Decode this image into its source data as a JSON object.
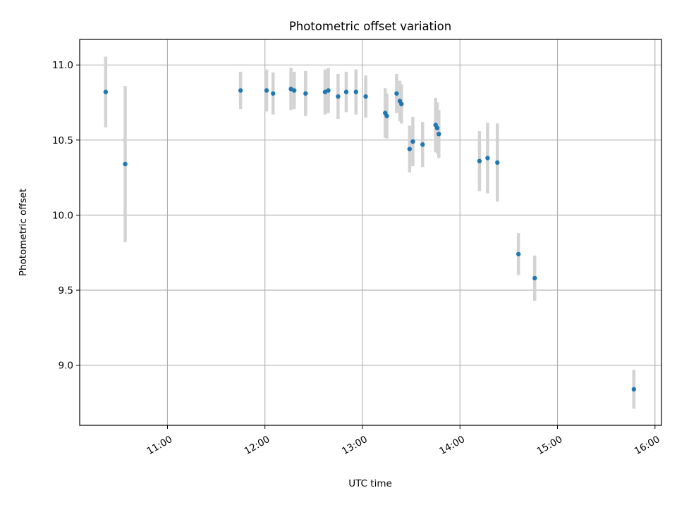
{
  "chart_data": {
    "type": "scatter",
    "title": "Photometric offset variation",
    "xlabel": "UTC time",
    "ylabel": "Photometric offset",
    "x_tick_labels": [
      "11:00",
      "12:00",
      "13:00",
      "14:00",
      "15:00",
      "16:00"
    ],
    "y_tick_labels": [
      "9.0",
      "9.5",
      "10.0",
      "10.5",
      "11.0"
    ],
    "x_ticks": [
      "11:00",
      "12:00",
      "13:00",
      "14:00",
      "15:00",
      "16:00"
    ],
    "y_ticks": [
      9.0,
      9.5,
      10.0,
      10.5,
      11.0
    ],
    "xlim": [
      "10:06",
      "16:04"
    ],
    "ylim": [
      8.6,
      11.17
    ],
    "grid": true,
    "marker_color": "#1f77b4",
    "errorbar_color": "#d3d3d3",
    "points": [
      {
        "x": "10:22",
        "y": 10.82,
        "err": 0.235
      },
      {
        "x": "10:34",
        "y": 10.34,
        "err": 0.52
      },
      {
        "x": "11:45",
        "y": 10.83,
        "err": 0.125
      },
      {
        "x": "12:01",
        "y": 10.83,
        "err": 0.14
      },
      {
        "x": "12:05",
        "y": 10.81,
        "err": 0.14
      },
      {
        "x": "12:16",
        "y": 10.84,
        "err": 0.14
      },
      {
        "x": "12:18",
        "y": 10.83,
        "err": 0.125
      },
      {
        "x": "12:25",
        "y": 10.81,
        "err": 0.15
      },
      {
        "x": "12:37",
        "y": 10.82,
        "err": 0.15
      },
      {
        "x": "12:39",
        "y": 10.83,
        "err": 0.15
      },
      {
        "x": "12:45",
        "y": 10.79,
        "err": 0.15
      },
      {
        "x": "12:50",
        "y": 10.82,
        "err": 0.135
      },
      {
        "x": "12:56",
        "y": 10.82,
        "err": 0.15
      },
      {
        "x": "13:02",
        "y": 10.79,
        "err": 0.14
      },
      {
        "x": "13:14",
        "y": 10.68,
        "err": 0.165
      },
      {
        "x": "13:15",
        "y": 10.66,
        "err": 0.15
      },
      {
        "x": "13:21",
        "y": 10.81,
        "err": 0.13
      },
      {
        "x": "13:23",
        "y": 10.76,
        "err": 0.135
      },
      {
        "x": "13:24",
        "y": 10.74,
        "err": 0.13
      },
      {
        "x": "13:29",
        "y": 10.44,
        "err": 0.155
      },
      {
        "x": "13:31",
        "y": 10.49,
        "err": 0.165
      },
      {
        "x": "13:37",
        "y": 10.47,
        "err": 0.15
      },
      {
        "x": "13:45",
        "y": 10.6,
        "err": 0.18
      },
      {
        "x": "13:46",
        "y": 10.58,
        "err": 0.17
      },
      {
        "x": "13:47",
        "y": 10.54,
        "err": 0.16
      },
      {
        "x": "14:12",
        "y": 10.36,
        "err": 0.2
      },
      {
        "x": "14:17",
        "y": 10.38,
        "err": 0.235
      },
      {
        "x": "14:23",
        "y": 10.35,
        "err": 0.26
      },
      {
        "x": "14:36",
        "y": 9.74,
        "err": 0.14
      },
      {
        "x": "14:46",
        "y": 9.58,
        "err": 0.15
      },
      {
        "x": "15:47",
        "y": 8.84,
        "err": 0.13
      }
    ]
  }
}
